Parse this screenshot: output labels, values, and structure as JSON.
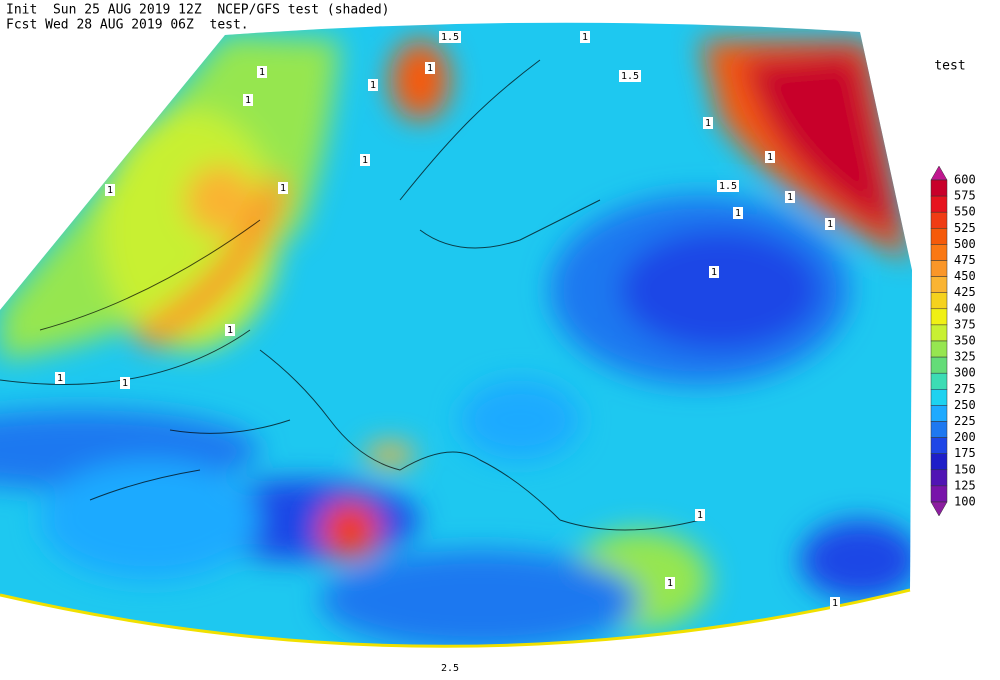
{
  "header": {
    "line1": "Init  Sun 25 AUG 2019 12Z  NCEP/GFS test (shaded)",
    "line2": "Fcst Wed 28 AUG 2019 06Z  test."
  },
  "colorbar": {
    "title": "test",
    "labels": [
      600,
      575,
      550,
      525,
      500,
      475,
      450,
      425,
      400,
      375,
      350,
      325,
      300,
      275,
      250,
      225,
      200,
      175,
      150,
      125,
      100
    ],
    "colors": [
      "#c01890",
      "#c8002a",
      "#e6141e",
      "#f03c14",
      "#f55a0a",
      "#fa7814",
      "#fa9628",
      "#fab432",
      "#f5d21e",
      "#f0f014",
      "#c8f032",
      "#96e650",
      "#64dc78",
      "#3cdcb4",
      "#1ed2f0",
      "#1eaaff",
      "#1e78f0",
      "#1e46e6",
      "#1e1ec8",
      "#5014b4",
      "#7814aa",
      "#8c1ea0"
    ]
  },
  "contour_labels": [
    "1.5",
    "1",
    "1.5",
    "1",
    "1",
    "1",
    "1",
    "1",
    "1",
    "1.5",
    "1",
    "1",
    "1",
    "1",
    "1",
    "1",
    "1",
    "1",
    "1",
    "1",
    "1",
    "1",
    "1",
    "2.5"
  ]
}
